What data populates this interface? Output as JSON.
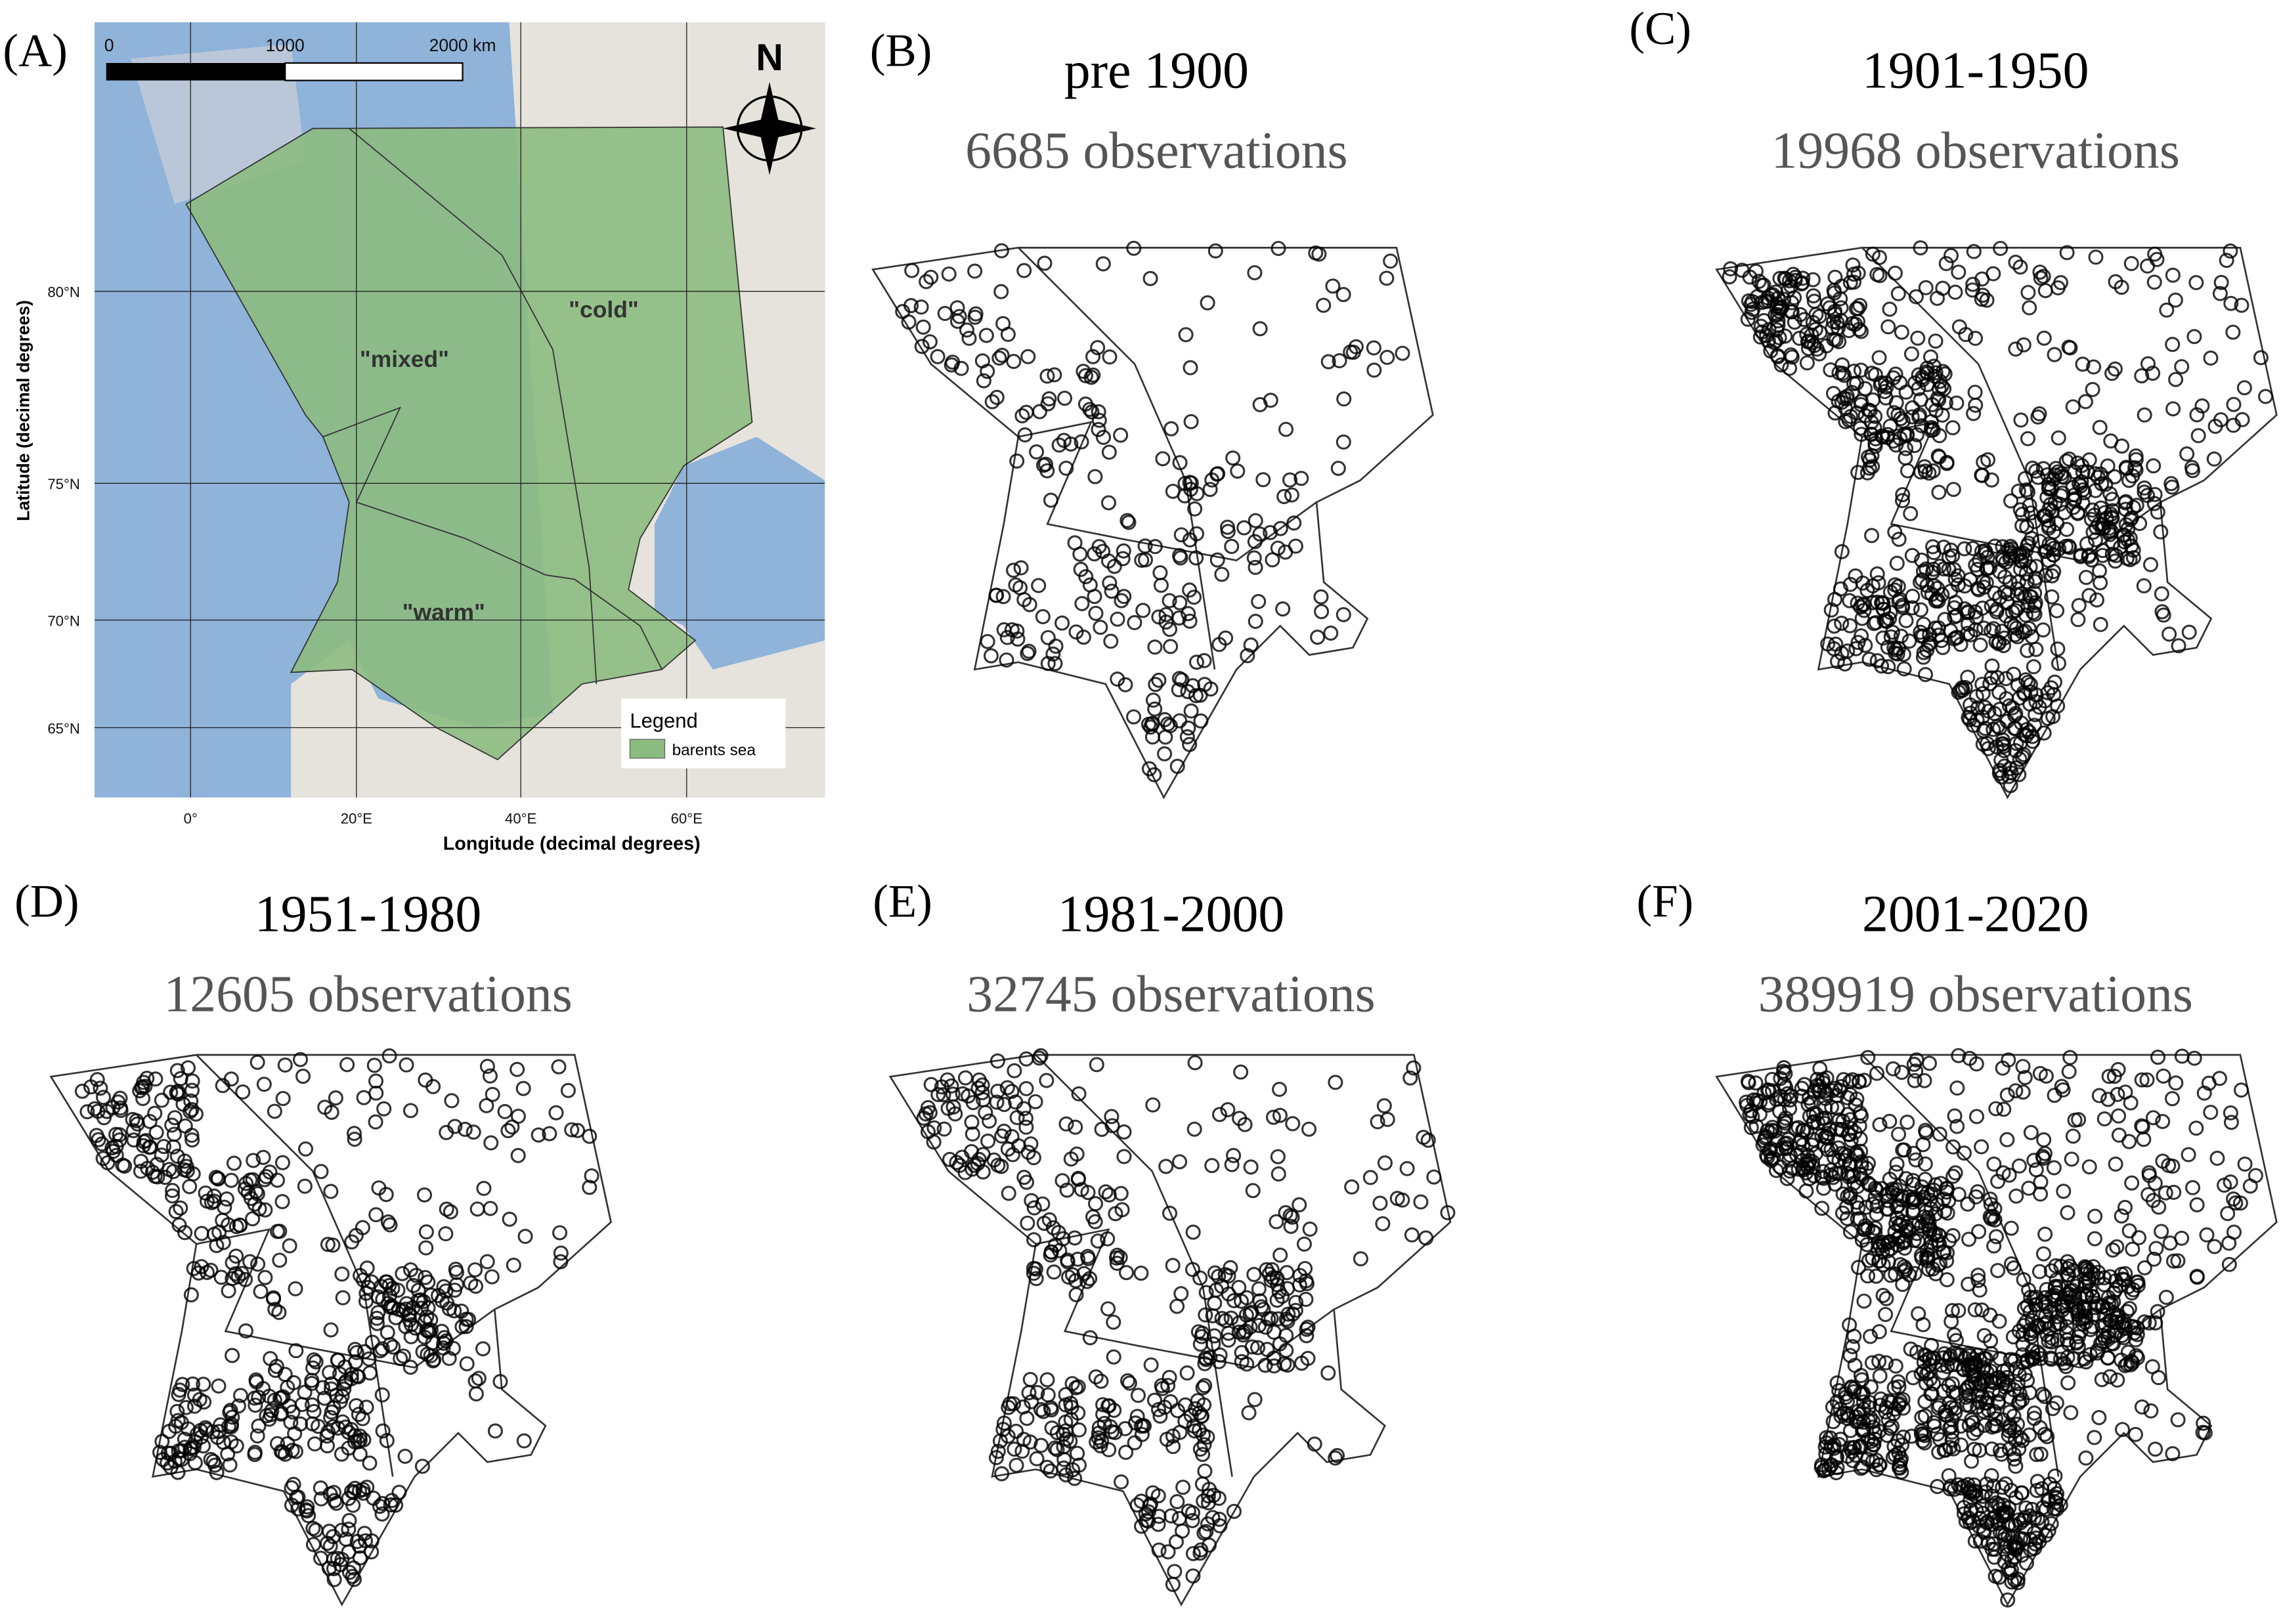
{
  "map": {
    "label": "(A)",
    "scale_labels": [
      "0",
      "1000",
      "2000 km"
    ],
    "north": "N",
    "x_axis_label": "Longitude (decimal degrees)",
    "y_axis_label": "Latitude (decimal degrees)",
    "x_ticks": [
      "0°",
      "20°E",
      "40°E",
      "60°E"
    ],
    "y_ticks": [
      "80°N",
      "75°N",
      "70°N",
      "65°N"
    ],
    "regions": [
      "\"mixed\"",
      "\"cold\"",
      "\"warm\""
    ],
    "legend": {
      "title": "Legend",
      "entry": "barents sea"
    }
  },
  "panels": [
    {
      "label": "(B)",
      "period": "pre 1900",
      "observations": "6685 observations"
    },
    {
      "label": "(C)",
      "period": "1901-1950",
      "observations": "19968 observations"
    },
    {
      "label": "(D)",
      "period": "1951-1980",
      "observations": "12605 observations"
    },
    {
      "label": "(E)",
      "period": "1981-2000",
      "observations": "32745 observations"
    },
    {
      "label": "(F)",
      "period": "2001-2020",
      "observations": "389919 observations"
    }
  ]
}
